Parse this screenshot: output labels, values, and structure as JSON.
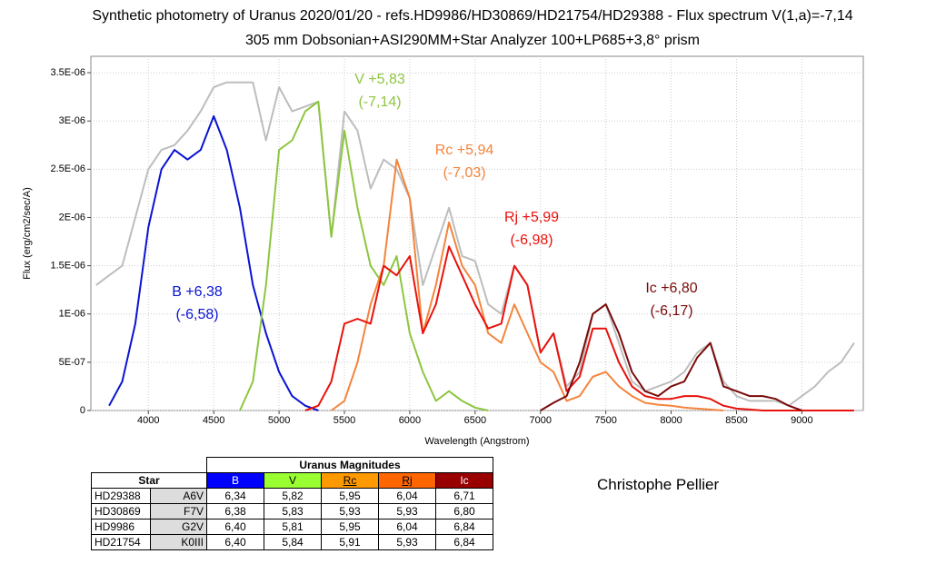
{
  "chart_data": {
    "type": "line",
    "title": "Synthetic photometry of Uranus 2020/01/20 - refs.HD9986/HD30869/HD21754/HD29388 - Flux spectrum V(1,a)=-7,14",
    "subtitle": "305 mm Dobsonian+ASI290MM+Star Analyzer 100+LP685+3,8° prism",
    "x_label": "Wavelength (Angstrom)",
    "y_label": "Flux (erg/cm2/sec/A)",
    "xlim": [
      3560,
      9470
    ],
    "ylim": [
      0,
      3.67e-06
    ],
    "xticks": [
      4000,
      4500,
      5000,
      5500,
      6000,
      6500,
      7000,
      7500,
      8000,
      8500,
      9000
    ],
    "yticks": [
      0,
      {
        "value": 5e-07,
        "label": "5E-07"
      },
      {
        "value": 1e-06,
        "label": "1E-06"
      },
      {
        "value": 1.5e-06,
        "label": "1.5E-06"
      },
      {
        "value": 2e-06,
        "label": "2E-06"
      },
      {
        "value": 2.5e-06,
        "label": "2.5E-06"
      },
      {
        "value": 3e-06,
        "label": "3E-06"
      },
      {
        "value": 3.5e-06,
        "label": "3.5E-06"
      }
    ],
    "grid": true,
    "x": [
      3600,
      3700,
      3800,
      3900,
      4000,
      4100,
      4200,
      4300,
      4400,
      4500,
      4600,
      4700,
      4800,
      4900,
      5000,
      5100,
      5200,
      5300,
      5400,
      5500,
      5600,
      5700,
      5800,
      5900,
      6000,
      6100,
      6200,
      6300,
      6400,
      6500,
      6600,
      6700,
      6800,
      6900,
      7000,
      7100,
      7200,
      7300,
      7400,
      7500,
      7600,
      7700,
      7800,
      7900,
      8000,
      8100,
      8200,
      8300,
      8400,
      8500,
      8600,
      8700,
      8800,
      8900,
      9000,
      9100,
      9200,
      9300,
      9400
    ],
    "series": [
      {
        "color": "#bdbdbd",
        "values": [
          1.3e-06,
          1.4e-06,
          1.5e-06,
          2e-06,
          2.5e-06,
          2.7e-06,
          2.75e-06,
          2.9e-06,
          3.1e-06,
          3.35e-06,
          3.4e-06,
          3.4e-06,
          3.4e-06,
          2.8e-06,
          3.35e-06,
          3.1e-06,
          3.15e-06,
          3.2e-06,
          1.8e-06,
          3.1e-06,
          2.9e-06,
          2.3e-06,
          2.6e-06,
          2.5e-06,
          2.2e-06,
          1.3e-06,
          1.7e-06,
          2.1e-06,
          1.6e-06,
          1.55e-06,
          1.1e-06,
          1e-06,
          1.5e-06,
          1.3e-06,
          6e-07,
          8e-07,
          2.5e-07,
          4e-07,
          1e-06,
          1.1e-06,
          7e-07,
          3e-07,
          2e-07,
          2.5e-07,
          3e-07,
          4e-07,
          6e-07,
          7e-07,
          3e-07,
          1.5e-07,
          1e-07,
          1e-07,
          1e-07,
          5e-08,
          1.5e-07,
          2.5e-07,
          4e-07,
          5e-07,
          7e-07
        ]
      },
      {
        "color": "#0a14d2",
        "values": [
          null,
          5e-08,
          3e-07,
          9e-07,
          1.9e-06,
          2.5e-06,
          2.7e-06,
          2.6e-06,
          2.7e-06,
          3.05e-06,
          2.7e-06,
          2.1e-06,
          1.3e-06,
          8e-07,
          4e-07,
          1.5e-07,
          5e-08,
          0,
          null,
          null,
          null,
          null,
          null,
          null,
          null,
          null,
          null,
          null,
          null,
          null,
          null,
          null,
          null,
          null,
          null,
          null,
          null,
          null,
          null,
          null,
          null,
          null,
          null,
          null,
          null,
          null,
          null,
          null,
          null,
          null,
          null,
          null,
          null,
          null,
          null,
          null,
          null,
          null,
          null
        ]
      },
      {
        "color": "#8dc63f",
        "values": [
          null,
          null,
          null,
          null,
          null,
          null,
          null,
          null,
          null,
          null,
          null,
          0,
          3e-07,
          1.3e-06,
          2.7e-06,
          2.8e-06,
          3.1e-06,
          3.2e-06,
          1.8e-06,
          2.9e-06,
          2.1e-06,
          1.5e-06,
          1.3e-06,
          1.6e-06,
          8e-07,
          4e-07,
          1e-07,
          2e-07,
          1e-07,
          3e-08,
          0,
          null,
          null,
          null,
          null,
          null,
          null,
          null,
          null,
          null,
          null,
          null,
          null,
          null,
          null,
          null,
          null,
          null,
          null,
          null,
          null,
          null,
          null,
          null,
          null,
          null,
          null,
          null,
          null
        ]
      },
      {
        "color": "#f4843c",
        "values": [
          null,
          null,
          null,
          null,
          null,
          null,
          null,
          null,
          null,
          null,
          null,
          null,
          null,
          null,
          null,
          null,
          null,
          null,
          0,
          1e-07,
          5e-07,
          1.1e-06,
          1.5e-06,
          2.6e-06,
          2.2e-06,
          8e-07,
          1.3e-06,
          1.95e-06,
          1.5e-06,
          1.3e-06,
          8e-07,
          7e-07,
          1.1e-06,
          8e-07,
          5e-07,
          4e-07,
          1e-07,
          1.5e-07,
          3.5e-07,
          4e-07,
          2.5e-07,
          1.5e-07,
          8e-08,
          6e-08,
          5e-08,
          3e-08,
          2e-08,
          1e-08,
          0,
          null,
          null,
          null,
          null,
          null,
          null,
          null,
          null,
          null,
          null
        ]
      },
      {
        "color": "#e8120c",
        "values": [
          null,
          null,
          null,
          null,
          null,
          null,
          null,
          null,
          null,
          null,
          null,
          null,
          null,
          null,
          null,
          null,
          0,
          5e-08,
          3e-07,
          9e-07,
          9.5e-07,
          9e-07,
          1.5e-06,
          1.4e-06,
          1.6e-06,
          8e-07,
          1.1e-06,
          1.7e-06,
          1.4e-06,
          1.1e-06,
          8.5e-07,
          9e-07,
          1.5e-06,
          1.3e-06,
          6e-07,
          8e-07,
          2e-07,
          3.5e-07,
          8.5e-07,
          8.5e-07,
          5e-07,
          2.5e-07,
          1.5e-07,
          1.2e-07,
          1.2e-07,
          1.5e-07,
          1.5e-07,
          1.2e-07,
          5e-08,
          2e-08,
          1e-08,
          0,
          0,
          0,
          0,
          0,
          0,
          0,
          0
        ]
      },
      {
        "color": "#7a0a0a",
        "values": [
          null,
          null,
          null,
          null,
          null,
          null,
          null,
          null,
          null,
          null,
          null,
          null,
          null,
          null,
          null,
          null,
          null,
          null,
          null,
          null,
          null,
          null,
          null,
          null,
          null,
          null,
          null,
          null,
          null,
          null,
          null,
          null,
          null,
          null,
          0,
          8e-08,
          1.5e-07,
          5e-07,
          1e-06,
          1.1e-06,
          8e-07,
          4e-07,
          2e-07,
          1.5e-07,
          2.5e-07,
          3e-07,
          5.5e-07,
          7e-07,
          2.5e-07,
          2e-07,
          1.5e-07,
          1.5e-07,
          1.2e-07,
          5e-08,
          0,
          null,
          null,
          null,
          null
        ]
      }
    ],
    "annotations": [
      {
        "text": "B +6,38",
        "color": "#0a14d2"
      },
      {
        "text": "(-6,58)",
        "color": "#0a14d2"
      },
      {
        "text": "V +5,83",
        "color": "#8dc63f"
      },
      {
        "text": "(-7,14)",
        "color": "#8dc63f"
      },
      {
        "text": "Rc +5,94",
        "color": "#f4843c"
      },
      {
        "text": "(-7,03)",
        "color": "#f4843c"
      },
      {
        "text": "Rj +5,99",
        "color": "#e8120c"
      },
      {
        "text": "(-6,98)",
        "color": "#e8120c"
      },
      {
        "text": "Ic +6,80",
        "color": "#7a0a0a"
      },
      {
        "text": "(-6,17)",
        "color": "#7a0a0a"
      }
    ]
  },
  "table": {
    "title": "Uranus Magnitudes",
    "star_header": "Star",
    "bands": [
      {
        "name": "B",
        "color": "#0000ff"
      },
      {
        "name": "V",
        "color": "#99ff33"
      },
      {
        "name": "Rc",
        "color": "#ff9900"
      },
      {
        "name": "Rj",
        "color": "#ff6600"
      },
      {
        "name": "Ic",
        "color": "#990000"
      }
    ],
    "rows": [
      [
        "HD29388",
        "A6V",
        "6,34",
        "5,82",
        "5,95",
        "6,04",
        "6,71"
      ],
      [
        "HD30869",
        "F7V",
        "6,38",
        "5,83",
        "5,93",
        "5,93",
        "6,80"
      ],
      [
        "HD9986",
        "G2V",
        "6,40",
        "5,81",
        "5,95",
        "6,04",
        "6,84"
      ],
      [
        "HD21754",
        "K0III",
        "6,40",
        "5,84",
        "5,91",
        "5,93",
        "6,84"
      ]
    ]
  },
  "credit": "Christophe Pellier"
}
